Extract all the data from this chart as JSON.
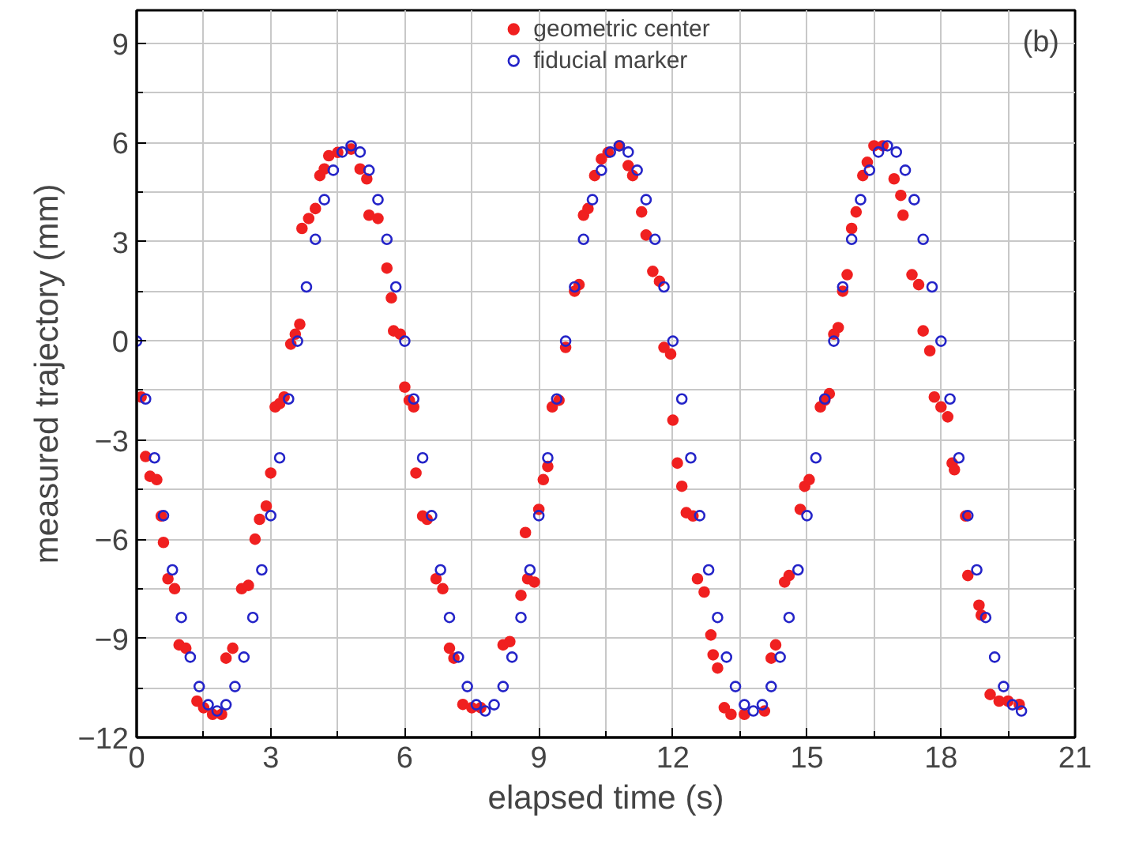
{
  "chart_data": {
    "type": "scatter",
    "xlabel": "elapsed time (s)",
    "ylabel": "measured trajectory (mm)",
    "annotations": [
      "(b)"
    ],
    "xlim": [
      0,
      21
    ],
    "ylim": [
      -12,
      10
    ],
    "xticks": [
      0,
      {
        "value": 1.5,
        "label": null
      },
      3,
      {
        "value": 4.5,
        "label": null
      },
      6,
      {
        "value": 7.5,
        "label": null
      },
      9,
      {
        "value": 10.5,
        "label": null
      },
      12,
      {
        "value": 13.5,
        "label": null
      },
      15,
      {
        "value": 16.5,
        "label": null
      },
      18,
      {
        "value": 19.5,
        "label": null
      },
      21
    ],
    "yticks": [
      -12,
      {
        "value": -10.5,
        "label": null
      },
      -9,
      {
        "value": -7.5,
        "label": null
      },
      -6,
      {
        "value": -4.5,
        "label": null
      },
      -3,
      {
        "value": -1.5,
        "label": null
      },
      0,
      {
        "value": 1.5,
        "label": null
      },
      3,
      {
        "value": 4.5,
        "label": null
      },
      6,
      {
        "value": 7.5,
        "label": null
      },
      9
    ],
    "grid": true,
    "legend": "top",
    "marker": "circle",
    "series": [
      {
        "name": "geometric center",
        "color": "#f02020",
        "x": [
          0.1,
          0.2,
          0.3,
          0.45,
          0.55,
          0.6,
          0.7,
          0.85,
          0.95,
          1.1,
          1.35,
          1.5,
          1.7,
          1.9,
          2.0,
          2.15,
          2.35,
          2.5,
          2.65,
          2.75,
          2.9,
          3.0,
          3.1,
          3.2,
          3.3,
          3.45,
          3.55,
          3.65,
          3.7,
          3.85,
          4.0,
          4.1,
          4.2,
          4.3,
          4.5,
          4.8,
          5.0,
          5.15,
          5.2,
          5.4,
          5.6,
          5.7,
          5.75,
          5.9,
          6.0,
          6.1,
          6.2,
          6.25,
          6.4,
          6.5,
          6.7,
          6.85,
          7.0,
          7.1,
          7.3,
          7.5,
          7.7,
          8.2,
          8.35,
          8.6,
          8.75,
          8.9,
          8.7,
          9.0,
          9.1,
          9.2,
          9.3,
          9.45,
          9.6,
          9.8,
          9.9,
          10.0,
          10.1,
          10.25,
          10.4,
          10.55,
          10.8,
          11.0,
          11.1,
          11.3,
          11.4,
          11.55,
          11.7,
          11.8,
          11.95,
          12.0,
          12.1,
          12.2,
          12.3,
          12.45,
          12.55,
          12.7,
          12.85,
          12.9,
          13.0,
          13.15,
          13.3,
          13.6,
          14.05,
          14.2,
          14.3,
          14.5,
          14.6,
          14.85,
          14.95,
          15.05,
          15.3,
          15.4,
          15.5,
          15.6,
          15.7,
          15.8,
          15.9,
          16.0,
          16.1,
          16.25,
          16.35,
          16.5,
          16.7,
          16.95,
          17.1,
          17.15,
          17.35,
          17.5,
          17.6,
          17.75,
          17.85,
          18.0,
          18.15,
          18.25,
          18.3,
          18.55,
          18.6,
          18.85,
          18.9,
          19.1,
          19.3,
          19.5,
          19.75
        ],
        "values": [
          -1.7,
          -3.5,
          -4.1,
          -4.2,
          -5.3,
          -6.1,
          -7.2,
          -7.5,
          -9.2,
          -9.3,
          -10.9,
          -11.1,
          -11.3,
          -11.3,
          -9.6,
          -9.3,
          -7.5,
          -7.4,
          -6.0,
          -5.4,
          -5.0,
          -4.0,
          -2.0,
          -1.9,
          -1.7,
          -0.1,
          0.2,
          0.5,
          3.4,
          3.7,
          4.0,
          5.0,
          5.2,
          5.6,
          5.7,
          5.8,
          5.2,
          4.9,
          3.8,
          3.7,
          2.2,
          1.3,
          0.3,
          0.2,
          -1.4,
          -1.8,
          -2.0,
          -4.0,
          -5.3,
          -5.4,
          -7.2,
          -7.5,
          -9.3,
          -9.6,
          -11.0,
          -11.1,
          -11.1,
          -9.2,
          -9.1,
          -7.7,
          -7.2,
          -7.3,
          -5.8,
          -5.1,
          -4.2,
          -3.8,
          -2.0,
          -1.8,
          -0.2,
          1.5,
          1.7,
          3.8,
          4.0,
          5.0,
          5.5,
          5.7,
          5.9,
          5.3,
          5.0,
          3.9,
          3.2,
          2.1,
          1.8,
          -0.2,
          -0.4,
          -2.4,
          -3.7,
          -4.4,
          -5.2,
          -5.3,
          -7.2,
          -7.6,
          -8.9,
          -9.5,
          -9.9,
          -11.1,
          -11.3,
          -11.3,
          -11.2,
          -9.6,
          -9.2,
          -7.3,
          -7.1,
          -5.1,
          -4.4,
          -4.2,
          -2.0,
          -1.8,
          -1.6,
          0.2,
          0.4,
          1.5,
          2.0,
          3.4,
          3.9,
          5.0,
          5.4,
          5.9,
          5.9,
          4.9,
          4.4,
          3.8,
          2.0,
          1.7,
          0.3,
          -0.3,
          -1.7,
          -2.0,
          -2.3,
          -3.7,
          -3.9,
          -5.3,
          -7.1,
          -8.0,
          -8.3,
          -10.7,
          -10.9,
          -10.9,
          -11.0
        ]
      },
      {
        "name": "fiducial marker",
        "color": "#2424c8",
        "x": [
          0,
          0.2,
          0.4,
          0.6,
          0.8,
          1.0,
          1.2,
          1.4,
          1.6,
          1.8,
          2.0,
          2.2,
          2.4,
          2.6,
          2.8,
          3.0,
          3.2,
          3.4,
          3.6,
          3.8,
          4.0,
          4.2,
          4.4,
          4.6,
          4.8,
          5.0,
          5.2,
          5.4,
          5.6,
          5.8,
          6.0,
          6.2,
          6.4,
          6.6,
          6.8,
          7.0,
          7.2,
          7.4,
          7.6,
          7.8,
          8.0,
          8.2,
          8.4,
          8.6,
          8.8,
          9.0,
          9.2,
          9.4,
          9.6,
          9.8,
          10.0,
          10.2,
          10.4,
          10.6,
          10.8,
          11.0,
          11.2,
          11.4,
          11.6,
          11.8,
          12.0,
          12.2,
          12.4,
          12.6,
          12.8,
          13.0,
          13.2,
          13.4,
          13.6,
          13.8,
          14.0,
          14.2,
          14.4,
          14.6,
          14.8,
          15.0,
          15.2,
          15.4,
          15.6,
          15.8,
          16.0,
          16.2,
          16.4,
          16.6,
          16.8,
          17.0,
          17.2,
          17.4,
          17.6,
          17.8,
          18.0,
          18.2,
          18.4,
          18.6,
          18.8,
          19.0,
          19.2,
          19.4,
          19.6,
          19.8
        ],
        "values": [
          -0.01,
          -1.76,
          -3.54,
          -5.29,
          -6.93,
          -8.37,
          -9.57,
          -10.46,
          -11.01,
          -11.2,
          -11.01,
          -10.46,
          -9.57,
          -8.37,
          -6.93,
          -5.29,
          -3.54,
          -1.76,
          -0.01,
          1.63,
          3.07,
          4.27,
          5.16,
          5.71,
          5.9,
          5.71,
          5.16,
          4.27,
          3.07,
          1.63,
          -0.01,
          -1.76,
          -3.54,
          -5.29,
          -6.93,
          -8.37,
          -9.57,
          -10.46,
          -11.01,
          -11.2,
          -11.01,
          -10.46,
          -9.57,
          -8.37,
          -6.93,
          -5.29,
          -3.54,
          -1.76,
          -0.01,
          1.63,
          3.07,
          4.27,
          5.16,
          5.71,
          5.9,
          5.71,
          5.16,
          4.27,
          3.07,
          1.63,
          -0.01,
          -1.76,
          -3.54,
          -5.29,
          -6.93,
          -8.37,
          -9.57,
          -10.46,
          -11.01,
          -11.2,
          -11.01,
          -10.46,
          -9.57,
          -8.37,
          -6.93,
          -5.29,
          -3.54,
          -1.76,
          -0.01,
          1.63,
          3.07,
          4.27,
          5.16,
          5.71,
          5.9,
          5.71,
          5.16,
          4.27,
          3.07,
          1.63,
          -0.01,
          -1.76,
          -3.54,
          -5.29,
          -6.93,
          -8.37,
          -9.57,
          -10.46,
          -11.01,
          -11.2
        ]
      }
    ]
  }
}
